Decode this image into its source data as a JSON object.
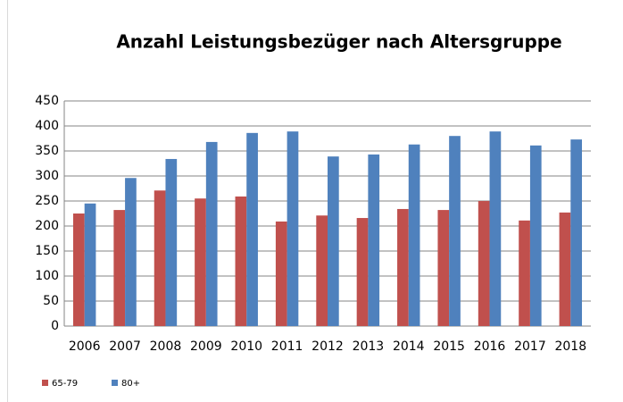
{
  "chart_data": {
    "type": "bar",
    "title": "Anzahl Leistungsbezüger nach Altersgruppe",
    "categories": [
      "2006",
      "2007",
      "2008",
      "2009",
      "2010",
      "2011",
      "2012",
      "2013",
      "2014",
      "2015",
      "2016",
      "2017",
      "2018"
    ],
    "series": [
      {
        "name": "65-79",
        "color": "#c0504d",
        "values": [
          225,
          232,
          271,
          255,
          259,
          209,
          221,
          216,
          234,
          232,
          250,
          211,
          227
        ]
      },
      {
        "name": "80+",
        "color": "#4f81bd",
        "values": [
          245,
          296,
          334,
          368,
          386,
          389,
          339,
          343,
          363,
          380,
          389,
          361,
          373
        ]
      }
    ],
    "ylim": [
      0,
      450
    ],
    "yticks": [
      0,
      50,
      100,
      150,
      200,
      250,
      300,
      350,
      400,
      450
    ],
    "grid": true,
    "legend": "bottom-left"
  }
}
